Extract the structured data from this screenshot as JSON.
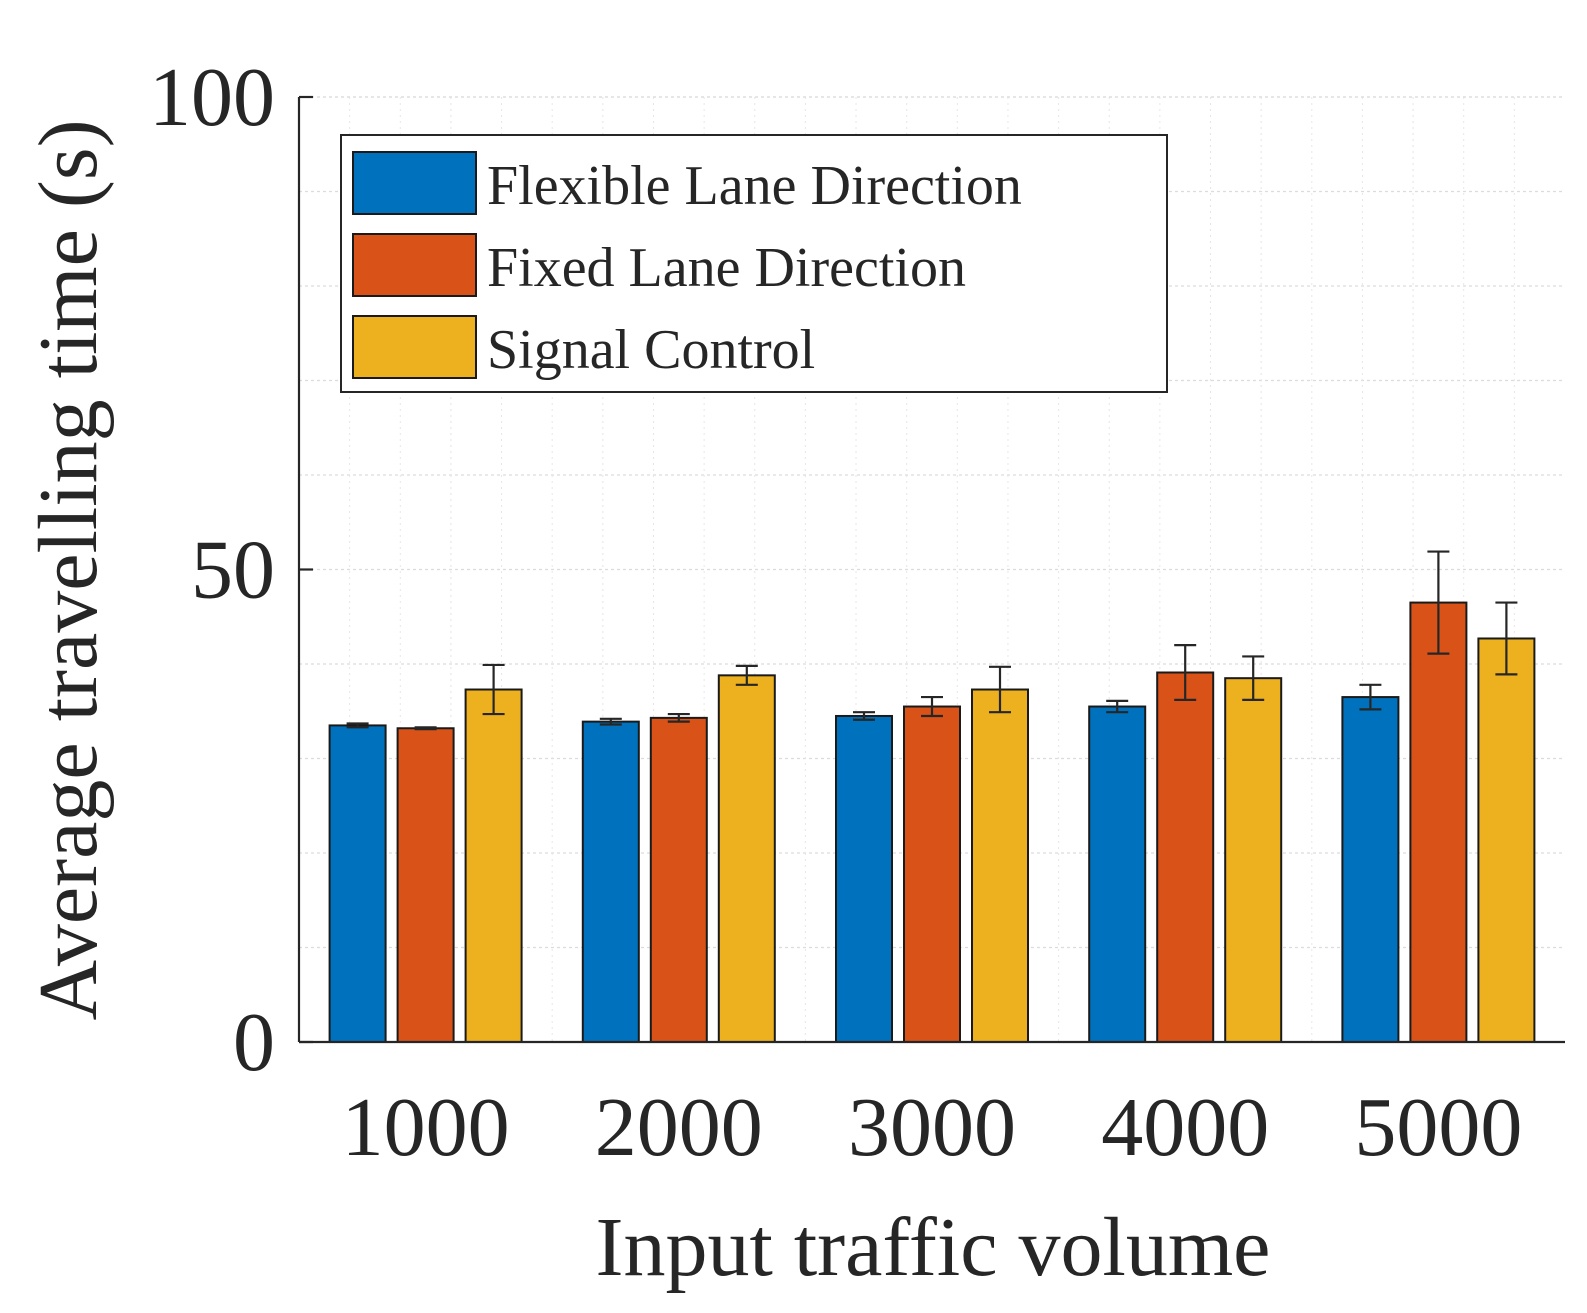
{
  "chart_data": {
    "type": "bar",
    "title": "",
    "xlabel": "Input traffic volume",
    "ylabel": "Average travelling time (s)",
    "categories": [
      "1000",
      "2000",
      "3000",
      "4000",
      "5000"
    ],
    "ylim": [
      0,
      100
    ],
    "yticks": [
      "0",
      "50",
      "100"
    ],
    "grid": true,
    "legend_position": "top-left",
    "series": [
      {
        "name": "Flexible Lane Direction",
        "color": "#0072BD",
        "values": [
          33.5,
          33.9,
          34.5,
          35.5,
          36.5
        ],
        "error": [
          0.2,
          0.3,
          0.4,
          0.6,
          1.3
        ]
      },
      {
        "name": "Fixed Lane Direction",
        "color": "#D95319",
        "values": [
          33.2,
          34.3,
          35.5,
          39.1,
          46.5
        ],
        "error": [
          0.1,
          0.4,
          1.0,
          2.9,
          5.4
        ]
      },
      {
        "name": "Signal Control",
        "color": "#EDB120",
        "values": [
          37.3,
          38.8,
          37.3,
          38.5,
          42.7
        ],
        "error": [
          2.6,
          1.0,
          2.4,
          2.3,
          3.8
        ]
      }
    ]
  }
}
